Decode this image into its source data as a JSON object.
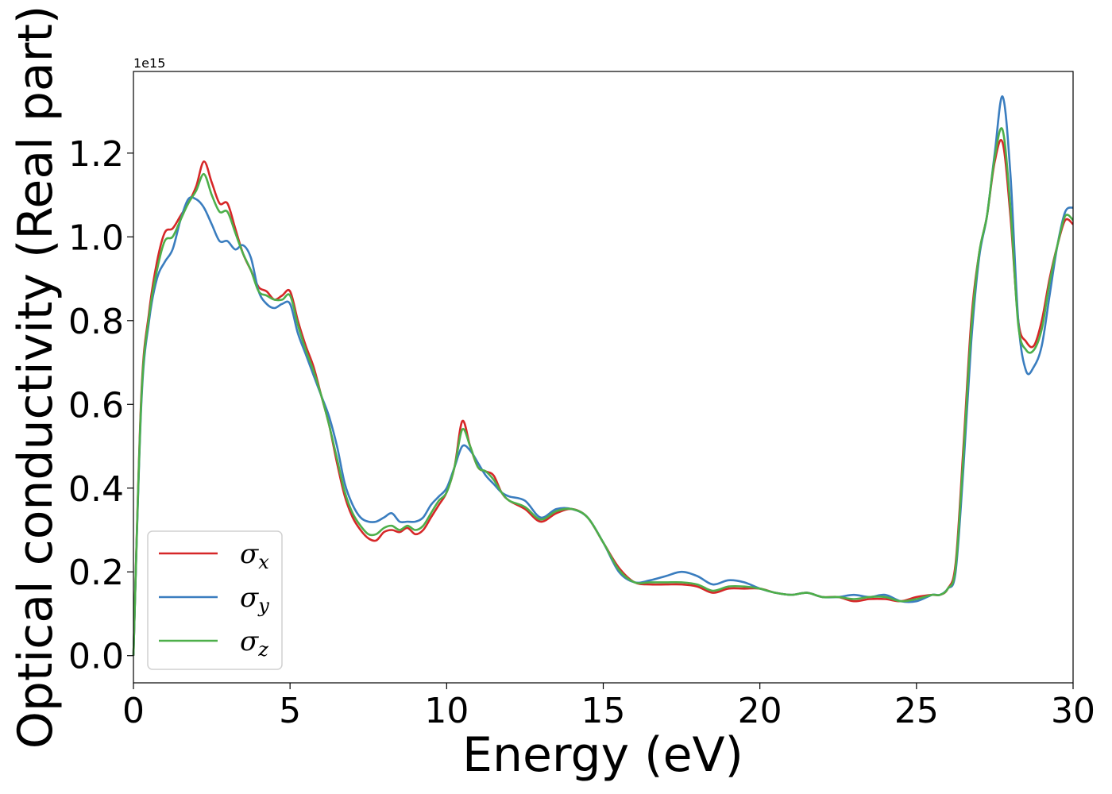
{
  "chart_data": {
    "type": "line",
    "title": "",
    "xlabel": "Energy (eV)",
    "ylabel": "Optical conductivity (Real part)",
    "y_offset_label": "1e15",
    "xlim": [
      0,
      30
    ],
    "ylim": [
      -0.065,
      1.395
    ],
    "xticks": [
      0,
      5,
      10,
      15,
      20,
      25,
      30
    ],
    "xtick_labels": [
      "0",
      "5",
      "10",
      "15",
      "20",
      "25",
      "30"
    ],
    "yticks": [
      0.0,
      0.2,
      0.4,
      0.6,
      0.8,
      1.0,
      1.2
    ],
    "ytick_labels": [
      "0.0",
      "0.2",
      "0.4",
      "0.6",
      "0.8",
      "1.0",
      "1.2"
    ],
    "grid": false,
    "legend_position": "lower-left",
    "x": [
      0,
      0.25,
      0.5,
      0.75,
      1.0,
      1.25,
      1.5,
      1.75,
      2.0,
      2.25,
      2.5,
      2.75,
      3.0,
      3.25,
      3.5,
      3.75,
      4.0,
      4.25,
      4.5,
      4.75,
      5.0,
      5.25,
      5.5,
      5.75,
      6.0,
      6.25,
      6.5,
      6.75,
      7.0,
      7.25,
      7.5,
      7.75,
      8.0,
      8.25,
      8.5,
      8.75,
      9.0,
      9.25,
      9.5,
      9.75,
      10.0,
      10.25,
      10.5,
      10.75,
      11.0,
      11.25,
      11.5,
      11.75,
      12.0,
      12.5,
      13.0,
      13.5,
      14.0,
      14.5,
      15.0,
      15.5,
      16.0,
      16.5,
      17.0,
      17.5,
      18.0,
      18.5,
      19.0,
      19.5,
      20.0,
      20.5,
      21.0,
      21.5,
      22.0,
      22.5,
      23.0,
      23.5,
      24.0,
      24.5,
      25.0,
      25.5,
      25.75,
      26.0,
      26.25,
      26.5,
      26.75,
      27.0,
      27.25,
      27.5,
      27.75,
      28.0,
      28.25,
      28.5,
      28.75,
      29.0,
      29.25,
      29.5,
      29.75,
      30.0
    ],
    "series": [
      {
        "name": "σ",
        "subscript": "x",
        "color": "#d62728",
        "values": [
          0.0,
          0.62,
          0.82,
          0.94,
          1.01,
          1.02,
          1.05,
          1.08,
          1.12,
          1.18,
          1.13,
          1.08,
          1.08,
          1.02,
          0.96,
          0.92,
          0.88,
          0.87,
          0.85,
          0.86,
          0.87,
          0.8,
          0.74,
          0.69,
          0.62,
          0.55,
          0.46,
          0.38,
          0.33,
          0.3,
          0.28,
          0.275,
          0.295,
          0.3,
          0.295,
          0.305,
          0.29,
          0.3,
          0.33,
          0.36,
          0.39,
          0.45,
          0.56,
          0.5,
          0.45,
          0.44,
          0.43,
          0.39,
          0.37,
          0.35,
          0.32,
          0.34,
          0.35,
          0.33,
          0.27,
          0.21,
          0.175,
          0.17,
          0.17,
          0.17,
          0.165,
          0.15,
          0.16,
          0.16,
          0.16,
          0.15,
          0.145,
          0.15,
          0.14,
          0.14,
          0.13,
          0.135,
          0.135,
          0.13,
          0.14,
          0.145,
          0.145,
          0.16,
          0.22,
          0.5,
          0.8,
          0.96,
          1.05,
          1.18,
          1.225,
          1.05,
          0.8,
          0.75,
          0.74,
          0.8,
          0.9,
          0.98,
          1.04,
          1.03
        ]
      },
      {
        "name": "σ",
        "subscript": "y",
        "color": "#3a7dbf",
        "values": [
          0.0,
          0.6,
          0.8,
          0.9,
          0.94,
          0.97,
          1.04,
          1.09,
          1.09,
          1.07,
          1.03,
          0.99,
          0.99,
          0.97,
          0.98,
          0.95,
          0.87,
          0.84,
          0.83,
          0.84,
          0.84,
          0.77,
          0.72,
          0.67,
          0.62,
          0.57,
          0.5,
          0.41,
          0.36,
          0.33,
          0.32,
          0.32,
          0.33,
          0.34,
          0.32,
          0.32,
          0.32,
          0.33,
          0.36,
          0.38,
          0.4,
          0.45,
          0.5,
          0.49,
          0.46,
          0.43,
          0.41,
          0.39,
          0.38,
          0.37,
          0.33,
          0.35,
          0.35,
          0.33,
          0.27,
          0.2,
          0.175,
          0.18,
          0.19,
          0.2,
          0.19,
          0.17,
          0.18,
          0.175,
          0.16,
          0.15,
          0.145,
          0.15,
          0.14,
          0.14,
          0.145,
          0.14,
          0.145,
          0.13,
          0.13,
          0.145,
          0.145,
          0.16,
          0.2,
          0.45,
          0.75,
          0.95,
          1.05,
          1.2,
          1.335,
          1.15,
          0.8,
          0.68,
          0.69,
          0.74,
          0.86,
          0.98,
          1.06,
          1.07
        ]
      },
      {
        "name": "σ",
        "subscript": "z",
        "color": "#4daf4a",
        "values": [
          0.0,
          0.61,
          0.81,
          0.92,
          0.99,
          1.0,
          1.04,
          1.08,
          1.11,
          1.15,
          1.1,
          1.06,
          1.06,
          1.01,
          0.96,
          0.92,
          0.87,
          0.86,
          0.85,
          0.85,
          0.86,
          0.79,
          0.73,
          0.68,
          0.62,
          0.55,
          0.47,
          0.39,
          0.34,
          0.31,
          0.29,
          0.29,
          0.305,
          0.31,
          0.3,
          0.31,
          0.3,
          0.31,
          0.34,
          0.37,
          0.39,
          0.45,
          0.54,
          0.5,
          0.45,
          0.44,
          0.42,
          0.39,
          0.37,
          0.355,
          0.325,
          0.345,
          0.35,
          0.33,
          0.27,
          0.205,
          0.175,
          0.175,
          0.175,
          0.175,
          0.17,
          0.155,
          0.165,
          0.165,
          0.16,
          0.15,
          0.145,
          0.15,
          0.14,
          0.14,
          0.135,
          0.14,
          0.14,
          0.13,
          0.135,
          0.145,
          0.145,
          0.16,
          0.21,
          0.48,
          0.78,
          0.96,
          1.05,
          1.19,
          1.255,
          1.07,
          0.79,
          0.73,
          0.73,
          0.78,
          0.89,
          0.98,
          1.05,
          1.04
        ]
      }
    ]
  }
}
